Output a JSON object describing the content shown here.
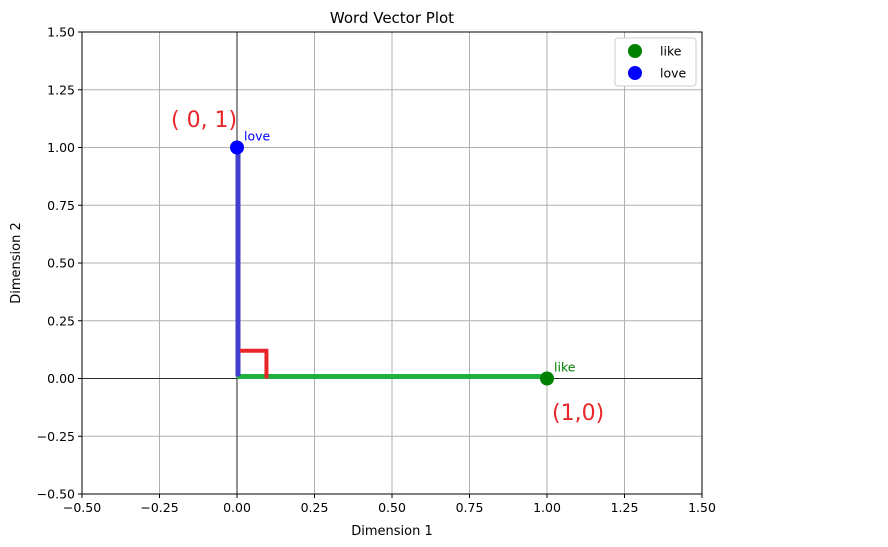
{
  "chart_data": {
    "type": "scatter",
    "title": "Word Vector Plot",
    "xlabel": "Dimension 1",
    "ylabel": "Dimension 2",
    "xlim": [
      -0.5,
      1.5
    ],
    "ylim": [
      -0.5,
      1.5
    ],
    "xticks": [
      "−0.50",
      "−0.25",
      "0.00",
      "0.25",
      "0.50",
      "0.75",
      "1.00",
      "1.25",
      "1.50"
    ],
    "yticks": [
      "−0.50",
      "−0.25",
      "0.00",
      "0.25",
      "0.50",
      "0.75",
      "1.00",
      "1.25",
      "1.50"
    ],
    "grid": true,
    "legend_position": "top-right",
    "series": [
      {
        "name": "like",
        "color": "#008000",
        "x": 1.0,
        "y": 0.0,
        "label": "like"
      },
      {
        "name": "love",
        "color": "#0000ff",
        "x": 0.0,
        "y": 1.0,
        "label": "love"
      }
    ],
    "annotations": [
      {
        "text": "( 0, 1)",
        "color": "#e8262a"
      },
      {
        "text": "(1,0)",
        "color": "#e8262a"
      }
    ],
    "vector_colors": {
      "horizontal": "#20b040",
      "vertical": "#4040d0",
      "right_angle": "#e8262a"
    }
  }
}
